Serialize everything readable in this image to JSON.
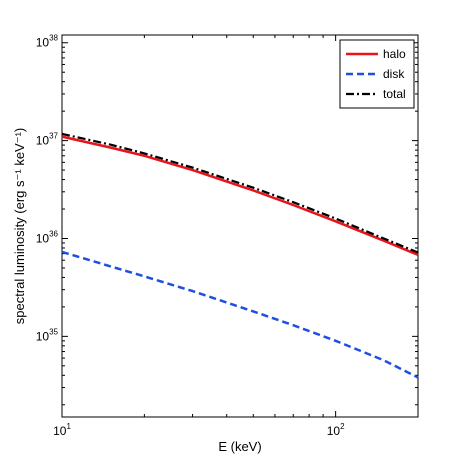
{
  "chart_data": {
    "type": "line",
    "x_scale": "log",
    "y_scale": "log",
    "xlim": [
      10,
      200
    ],
    "ylim": [
      1.5e+34,
      1.2e+38
    ],
    "xlabel": "E (keV)",
    "ylabel": "spectral luminosity (erg s⁻¹ keV⁻¹)",
    "grid": false,
    "legend_position": "top-right",
    "x_ticks": [
      {
        "value": 10,
        "base": "10",
        "exp": "1"
      },
      {
        "value": 100,
        "base": "10",
        "exp": "2"
      }
    ],
    "y_ticks": [
      {
        "value": 1e+35,
        "base": "10",
        "exp": "35"
      },
      {
        "value": 1e+36,
        "base": "10",
        "exp": "36"
      },
      {
        "value": 1e+37,
        "base": "10",
        "exp": "37"
      },
      {
        "value": 1e+38,
        "base": "10",
        "exp": "38"
      }
    ],
    "series": [
      {
        "name": "halo",
        "color": "#e8141a",
        "style": "solid",
        "x": [
          10,
          15,
          20,
          30,
          50,
          70,
          100,
          150,
          200
        ],
        "y": [
          1.1e+37,
          8.5e+36,
          7e+36,
          5e+36,
          3.1e+36,
          2.2e+36,
          1.5e+36,
          9.5e+35,
          6.8e+35
        ]
      },
      {
        "name": "disk",
        "color": "#1f4fe0",
        "style": "dashed",
        "x": [
          10,
          15,
          20,
          30,
          50,
          70,
          100,
          150,
          200
        ],
        "y": [
          7.3e+35,
          5.2e+35,
          4.1e+35,
          2.9e+35,
          1.8e+35,
          1.3e+35,
          9e+34,
          5.7e+34,
          3.8e+34
        ]
      },
      {
        "name": "total",
        "color": "#000000",
        "style": "dashdot",
        "x": [
          10,
          15,
          20,
          30,
          50,
          70,
          100,
          150,
          200
        ],
        "y": [
          1.17e+37,
          9.1e+36,
          7.4e+36,
          5.3e+36,
          3.3e+36,
          2.35e+36,
          1.6e+36,
          1e+36,
          7.2e+35
        ]
      }
    ]
  }
}
